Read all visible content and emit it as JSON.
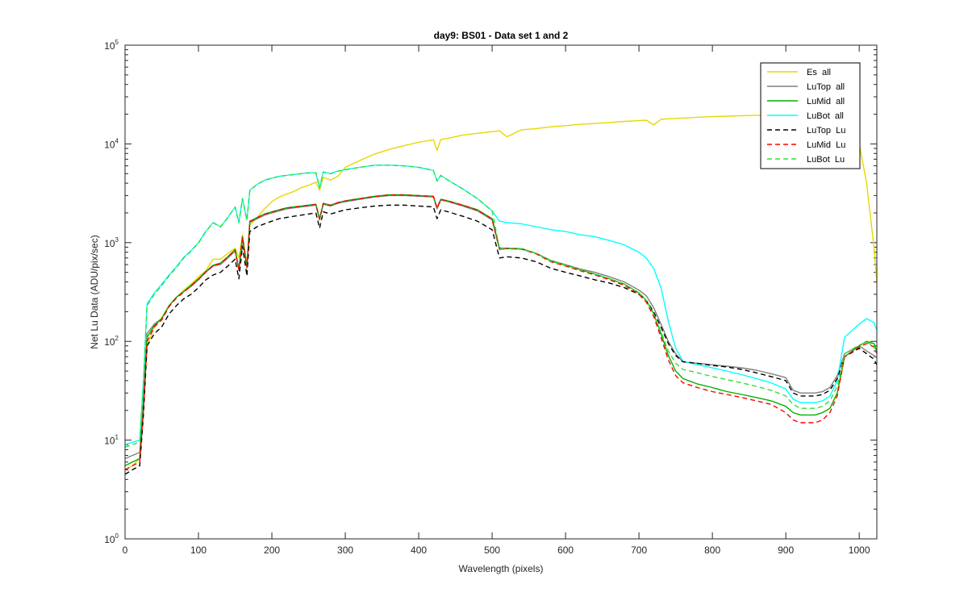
{
  "chart_data": {
    "type": "line",
    "title": "day9: BS01 - Data set 1 and 2",
    "xlabel": "Wavelength (pixels)",
    "ylabel": "Net Lu Data (ADU/pix/sec)",
    "xlim": [
      0,
      1024
    ],
    "ylim": [
      1,
      100000
    ],
    "yscale": "log",
    "grid": false,
    "legend_position": "top-right",
    "x_ticks": [
      "0",
      "100",
      "200",
      "300",
      "400",
      "500",
      "600",
      "700",
      "800",
      "900",
      "1000"
    ],
    "y_ticks": [
      {
        "base": "10",
        "exp": "0"
      },
      {
        "base": "10",
        "exp": "1"
      },
      {
        "base": "10",
        "exp": "2"
      },
      {
        "base": "10",
        "exp": "3"
      },
      {
        "base": "10",
        "exp": "4"
      },
      {
        "base": "10",
        "exp": "5"
      }
    ],
    "x": [
      0,
      10,
      20,
      25,
      30,
      40,
      50,
      60,
      70,
      80,
      90,
      100,
      110,
      120,
      130,
      140,
      150,
      155,
      160,
      166,
      170,
      180,
      190,
      200,
      210,
      220,
      230,
      240,
      250,
      260,
      265,
      270,
      280,
      290,
      300,
      320,
      340,
      360,
      380,
      400,
      420,
      425,
      430,
      440,
      460,
      480,
      500,
      510,
      520,
      540,
      560,
      580,
      600,
      620,
      640,
      660,
      680,
      700,
      710,
      720,
      730,
      740,
      750,
      760,
      780,
      800,
      820,
      840,
      860,
      880,
      900,
      910,
      920,
      940,
      950,
      960,
      970,
      980,
      1000,
      1010,
      1020,
      1024
    ],
    "series": [
      {
        "name": "Es  all",
        "color": "#e6d800",
        "dash": "solid",
        "values": [
          5,
          5.5,
          6.5,
          20,
          90,
          140,
          175,
          230,
          280,
          330,
          380,
          450,
          520,
          680,
          680,
          780,
          880,
          700,
          1200,
          600,
          1500,
          1800,
          2200,
          2600,
          2900,
          3100,
          3300,
          3600,
          3800,
          4100,
          3400,
          4600,
          4300,
          4700,
          5800,
          6800,
          7900,
          8800,
          9600,
          10400,
          11000,
          8600,
          11100,
          11400,
          12300,
          12800,
          13300,
          13600,
          11800,
          13900,
          14300,
          14900,
          15300,
          15800,
          16100,
          16500,
          16900,
          17200,
          17400,
          15600,
          17700,
          18000,
          18100,
          18300,
          18600,
          18900,
          19100,
          19300,
          19500,
          19700,
          19800,
          20000,
          19800,
          20000,
          20000,
          19500,
          17000,
          15000,
          10000,
          4000,
          900,
          400
        ]
      },
      {
        "name": "LuTop  all",
        "color": "#808080",
        "dash": "solid",
        "values": [
          6.5,
          7,
          7.5,
          25,
          120,
          150,
          170,
          230,
          280,
          320,
          360,
          420,
          500,
          580,
          600,
          700,
          820,
          520,
          1100,
          550,
          1600,
          1750,
          1900,
          2000,
          2100,
          2200,
          2250,
          2300,
          2350,
          2400,
          1700,
          2450,
          2350,
          2500,
          2600,
          2750,
          2900,
          3000,
          3000,
          2950,
          2900,
          2200,
          2700,
          2600,
          2350,
          2100,
          1700,
          850,
          870,
          860,
          780,
          660,
          600,
          540,
          500,
          450,
          400,
          330,
          290,
          220,
          150,
          100,
          75,
          62,
          60,
          58,
          56,
          54,
          51,
          47,
          43,
          32,
          30,
          30,
          31,
          34,
          45,
          75,
          90,
          80,
          72,
          68
        ]
      },
      {
        "name": "LuMid  all",
        "color": "#00b000",
        "dash": "solid",
        "values": [
          5.5,
          6,
          6.5,
          22,
          110,
          145,
          170,
          230,
          280,
          320,
          370,
          430,
          510,
          590,
          620,
          720,
          850,
          540,
          1150,
          570,
          1650,
          1800,
          1950,
          2050,
          2150,
          2250,
          2300,
          2350,
          2400,
          2450,
          1750,
          2500,
          2400,
          2550,
          2650,
          2800,
          2950,
          3050,
          3050,
          3000,
          2950,
          2250,
          2750,
          2650,
          2400,
          2150,
          1750,
          880,
          880,
          870,
          780,
          650,
          590,
          530,
          480,
          430,
          380,
          310,
          260,
          190,
          120,
          72,
          50,
          42,
          37,
          34,
          31,
          29,
          27,
          25,
          22,
          19,
          18,
          18,
          19,
          21,
          30,
          70,
          90,
          100,
          95,
          80
        ]
      },
      {
        "name": "LuBot  all",
        "color": "#00ffff",
        "dash": "solid",
        "values": [
          9,
          9.5,
          10,
          40,
          240,
          310,
          380,
          470,
          570,
          710,
          830,
          1000,
          1300,
          1600,
          1450,
          1800,
          2300,
          1600,
          2800,
          1700,
          3400,
          3900,
          4300,
          4500,
          4700,
          4800,
          4900,
          5000,
          5100,
          5100,
          3600,
          5200,
          5000,
          5300,
          5500,
          5800,
          6100,
          6100,
          6000,
          5800,
          5400,
          4200,
          4800,
          4300,
          3500,
          2800,
          2100,
          1650,
          1600,
          1550,
          1450,
          1350,
          1300,
          1200,
          1150,
          1050,
          950,
          800,
          700,
          550,
          350,
          160,
          85,
          63,
          58,
          54,
          50,
          46,
          42,
          38,
          33,
          26,
          24,
          24,
          25,
          28,
          40,
          110,
          150,
          170,
          155,
          130
        ]
      },
      {
        "name": "LuTop  Lu",
        "color": "#000000",
        "dash": "dashed",
        "values": [
          4.5,
          5,
          5.5,
          18,
          90,
          120,
          140,
          190,
          230,
          270,
          300,
          350,
          420,
          470,
          500,
          580,
          680,
          430,
          920,
          460,
          1300,
          1450,
          1550,
          1650,
          1750,
          1800,
          1850,
          1900,
          1950,
          2000,
          1400,
          2050,
          1950,
          2050,
          2150,
          2250,
          2350,
          2400,
          2400,
          2350,
          2300,
          1750,
          2150,
          2050,
          1850,
          1650,
          1350,
          700,
          720,
          700,
          640,
          550,
          500,
          460,
          420,
          390,
          350,
          300,
          260,
          200,
          140,
          95,
          72,
          62,
          60,
          57,
          55,
          52,
          48,
          44,
          40,
          30,
          28,
          28,
          29,
          32,
          42,
          70,
          85,
          75,
          66,
          58
        ]
      },
      {
        "name": "LuMid  Lu",
        "color": "#ff0000",
        "dash": "dashed",
        "values": [
          5,
          5.5,
          6,
          20,
          100,
          140,
          165,
          225,
          275,
          315,
          365,
          425,
          505,
          585,
          615,
          715,
          845,
          535,
          1140,
          565,
          1640,
          1790,
          1940,
          2040,
          2140,
          2240,
          2290,
          2340,
          2390,
          2440,
          1740,
          2490,
          2390,
          2540,
          2640,
          2790,
          2940,
          3040,
          3040,
          2990,
          2940,
          2240,
          2740,
          2640,
          2390,
          2140,
          1740,
          870,
          870,
          860,
          770,
          640,
          580,
          520,
          470,
          420,
          370,
          300,
          250,
          180,
          110,
          65,
          45,
          38,
          34,
          31,
          29,
          27,
          25,
          23,
          19,
          16,
          15,
          15,
          16,
          19,
          28,
          70,
          88,
          95,
          88,
          75
        ]
      },
      {
        "name": "LuBot  Lu",
        "color": "#33dd33",
        "dash": "dashed",
        "values": [
          8.5,
          9,
          9.5,
          38,
          230,
          300,
          370,
          460,
          560,
          700,
          820,
          990,
          1290,
          1590,
          1440,
          1790,
          2290,
          1590,
          2790,
          1690,
          3390,
          3890,
          4290,
          4490,
          4690,
          4790,
          4890,
          4990,
          5090,
          5090,
          3590,
          5190,
          4990,
          5290,
          5490,
          5790,
          6090,
          6090,
          5990,
          5790,
          5390,
          4190,
          4790,
          4290,
          3490,
          2790,
          2090,
          880,
          880,
          870,
          780,
          650,
          590,
          530,
          480,
          430,
          380,
          310,
          260,
          190,
          125,
          80,
          60,
          52,
          48,
          44,
          41,
          38,
          35,
          32,
          28,
          23,
          21,
          21,
          22,
          25,
          35,
          75,
          92,
          98,
          90,
          78
        ]
      }
    ]
  }
}
